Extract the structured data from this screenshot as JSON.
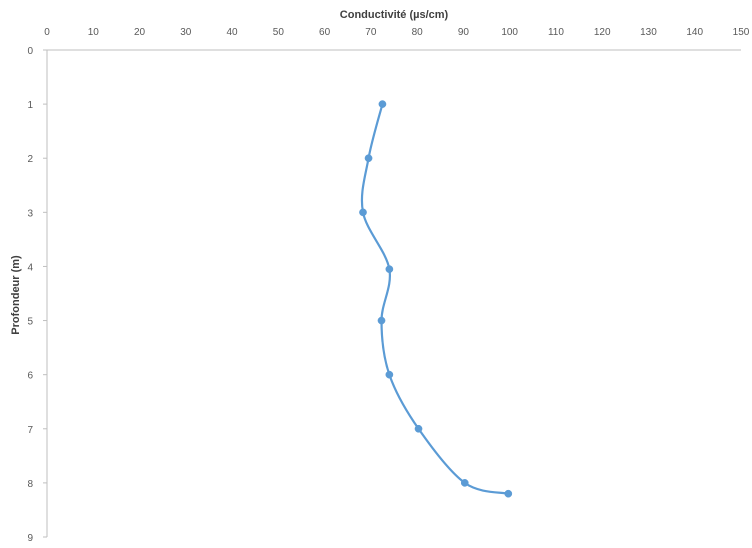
{
  "chart_data": {
    "type": "line",
    "title": "",
    "xlabel": "Conductivité (µs/cm)",
    "ylabel": "Profondeur (m)",
    "x_axis_position": "top",
    "y_axis_inverted": true,
    "xlim": [
      0,
      150
    ],
    "ylim": [
      0,
      9
    ],
    "x_ticks": [
      "0",
      "10",
      "20",
      "30",
      "40",
      "50",
      "60",
      "70",
      "80",
      "90",
      "100",
      "110",
      "120",
      "130",
      "140",
      "150"
    ],
    "y_ticks": [
      "0",
      "1",
      "2",
      "3",
      "4",
      "5",
      "6",
      "7",
      "8",
      "9"
    ],
    "grid": false,
    "legend": "none",
    "smoothed": true,
    "series": [
      {
        "color": "#5b9bd5",
        "points": [
          {
            "x": 72.5,
            "y": 1.0
          },
          {
            "x": 69.5,
            "y": 2.0
          },
          {
            "x": 68.3,
            "y": 3.0
          },
          {
            "x": 74.0,
            "y": 4.05
          },
          {
            "x": 72.3,
            "y": 5.0
          },
          {
            "x": 74.0,
            "y": 6.0
          },
          {
            "x": 80.3,
            "y": 7.0
          },
          {
            "x": 90.3,
            "y": 8.0
          },
          {
            "x": 99.7,
            "y": 8.2
          }
        ]
      }
    ]
  }
}
